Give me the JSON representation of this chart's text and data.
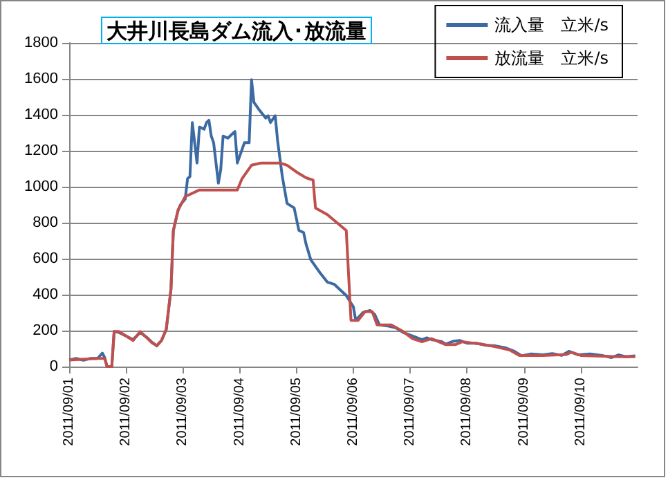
{
  "chart_data": {
    "type": "line",
    "title": "大井川長島ダム流入･放流量",
    "legend": "top right",
    "grid": "y",
    "marker": "none",
    "line_style": "solid",
    "xlim": [
      "2011-09-01",
      "2011-09-11"
    ],
    "xticks": [
      {
        "value": "2011-09-01",
        "label": "2011/09/01"
      },
      {
        "value": "2011-09-02",
        "label": "2011/09/02"
      },
      {
        "value": "2011-09-03",
        "label": "2011/09/03"
      },
      {
        "value": "2011-09-04",
        "label": "2011/09/04"
      },
      {
        "value": "2011-09-05",
        "label": "2011/09/05"
      },
      {
        "value": "2011-09-06",
        "label": "2011/09/06"
      },
      {
        "value": "2011-09-07",
        "label": "2011/09/07"
      },
      {
        "value": "2011-09-08",
        "label": "2011/09/08"
      },
      {
        "value": "2011-09-09",
        "label": "2011/09/09"
      },
      {
        "value": "2011-09-10",
        "label": "2011/09/10"
      }
    ],
    "ylim": [
      0,
      1800
    ],
    "yticks": [
      0,
      200,
      400,
      600,
      800,
      1000,
      1200,
      1400,
      1600,
      1800
    ],
    "series": [
      {
        "name": "流入量　立米/s",
        "color": "#3c6aa3",
        "x": [
          "2011-09-01T00:00",
          "2011-09-01T03:00",
          "2011-09-01T06:00",
          "2011-09-01T09:00",
          "2011-09-01T12:00",
          "2011-09-01T14:00",
          "2011-09-01T15:00",
          "2011-09-01T16:00",
          "2011-09-01T18:00",
          "2011-09-01T19:00",
          "2011-09-01T21:00",
          "2011-09-02T00:00",
          "2011-09-02T03:00",
          "2011-09-02T06:00",
          "2011-09-02T09:00",
          "2011-09-02T11:00",
          "2011-09-02T13:00",
          "2011-09-02T15:00",
          "2011-09-02T17:00",
          "2011-09-02T19:00",
          "2011-09-02T20:00",
          "2011-09-02T22:00",
          "2011-09-02T23:00",
          "2011-09-03T01:00",
          "2011-09-03T02:00",
          "2011-09-03T03:00",
          "2011-09-03T04:00",
          "2011-09-03T06:00",
          "2011-09-03T07:00",
          "2011-09-03T09:00",
          "2011-09-03T10:00",
          "2011-09-03T11:00",
          "2011-09-03T12:00",
          "2011-09-03T13:00",
          "2011-09-03T15:00",
          "2011-09-03T16:00",
          "2011-09-03T17:00",
          "2011-09-03T19:00",
          "2011-09-03T21:00",
          "2011-09-03T22:00",
          "2011-09-03T23:00",
          "2011-09-04T00:00",
          "2011-09-04T02:00",
          "2011-09-04T04:00",
          "2011-09-04T05:00",
          "2011-09-04T06:00",
          "2011-09-04T08:00",
          "2011-09-04T11:00",
          "2011-09-04T12:00",
          "2011-09-04T13:00",
          "2011-09-04T15:00",
          "2011-09-04T16:00",
          "2011-09-04T18:00",
          "2011-09-04T20:00",
          "2011-09-04T23:00",
          "2011-09-05T01:00",
          "2011-09-05T03:00",
          "2011-09-05T04:00",
          "2011-09-05T06:00",
          "2011-09-05T08:00",
          "2011-09-05T10:00",
          "2011-09-05T13:00",
          "2011-09-05T16:00",
          "2011-09-05T21:00",
          "2011-09-06T00:00",
          "2011-09-06T01:00",
          "2011-09-06T04:00",
          "2011-09-06T07:00",
          "2011-09-06T09:00",
          "2011-09-06T11:00",
          "2011-09-06T15:00",
          "2011-09-06T18:00",
          "2011-09-06T21:00",
          "2011-09-07T02:00",
          "2011-09-07T05:00",
          "2011-09-07T07:00",
          "2011-09-07T09:00",
          "2011-09-07T13:00",
          "2011-09-07T15:00",
          "2011-09-07T18:00",
          "2011-09-07T21:00",
          "2011-09-08T00:00",
          "2011-09-08T04:00",
          "2011-09-08T08:00",
          "2011-09-08T12:00",
          "2011-09-08T16:00",
          "2011-09-08T20:00",
          "2011-09-08T23:00",
          "2011-09-09T03:00",
          "2011-09-09T08:00",
          "2011-09-09T12:00",
          "2011-09-09T16:00",
          "2011-09-09T19:00",
          "2011-09-09T23:00",
          "2011-09-10T04:00",
          "2011-09-10T09:00",
          "2011-09-10T13:00",
          "2011-09-10T16:00",
          "2011-09-10T19:00",
          "2011-09-10T23:00"
        ],
        "values": [
          37,
          45,
          35,
          45,
          45,
          75,
          50,
          0,
          0,
          195,
          190,
          170,
          150,
          190,
          160,
          135,
          115,
          145,
          207,
          432,
          757,
          870,
          900,
          932,
          1045,
          1057,
          1357,
          1132,
          1332,
          1320,
          1357,
          1370,
          1282,
          1245,
          1020,
          1095,
          1282,
          1270,
          1295,
          1307,
          1132,
          1170,
          1245,
          1245,
          1595,
          1470,
          1432,
          1382,
          1395,
          1357,
          1395,
          1257,
          1057,
          907,
          882,
          757,
          745,
          682,
          595,
          557,
          520,
          470,
          457,
          395,
          332,
          257,
          300,
          312,
          290,
          232,
          225,
          215,
          190,
          165,
          150,
          160,
          150,
          140,
          125,
          140,
          145,
          130,
          130,
          118,
          115,
          105,
          85,
          60,
          70,
          65,
          72,
          62,
          85,
          65,
          70,
          62,
          50,
          65,
          55,
          60
        ]
      },
      {
        "name": "放流量　立米/s",
        "color": "#c0504d",
        "x": [
          "2011-09-01T00:00",
          "2011-09-01T12:00",
          "2011-09-01T15:00",
          "2011-09-01T16:00",
          "2011-09-01T18:00",
          "2011-09-01T19:00",
          "2011-09-01T21:00",
          "2011-09-02T00:00",
          "2011-09-02T03:00",
          "2011-09-02T06:00",
          "2011-09-02T09:00",
          "2011-09-02T11:00",
          "2011-09-02T13:00",
          "2011-09-02T15:00",
          "2011-09-02T17:00",
          "2011-09-02T19:00",
          "2011-09-02T20:00",
          "2011-09-02T22:00",
          "2011-09-03T01:00",
          "2011-09-03T07:00",
          "2011-09-03T23:00",
          "2011-09-04T01:00",
          "2011-09-04T05:00",
          "2011-09-04T09:00",
          "2011-09-04T17:00",
          "2011-09-04T20:00",
          "2011-09-05T00:00",
          "2011-09-05T04:00",
          "2011-09-05T07:00",
          "2011-09-05T08:00",
          "2011-09-05T13:00",
          "2011-09-05T21:00",
          "2011-09-05T23:00",
          "2011-09-06T02:00",
          "2011-09-06T05:00",
          "2011-09-06T08:00",
          "2011-09-06T10:00",
          "2011-09-06T16:00",
          "2011-09-06T21:00",
          "2011-09-07T01:00",
          "2011-09-07T05:00",
          "2011-09-07T09:00",
          "2011-09-07T15:00",
          "2011-09-07T19:00",
          "2011-09-07T22:00",
          "2011-09-08T06:00",
          "2011-09-08T12:00",
          "2011-09-08T18:00",
          "2011-09-08T22:00",
          "2011-09-09T08:00",
          "2011-09-09T18:00",
          "2011-09-09T20:00",
          "2011-09-10T00:00",
          "2011-09-10T16:00",
          "2011-09-10T23:00"
        ],
        "values": [
          37,
          45,
          45,
          0,
          0,
          195,
          195,
          170,
          145,
          195,
          157,
          132,
          117,
          145,
          207,
          432,
          757,
          870,
          945,
          982,
          982,
          1045,
          1120,
          1132,
          1132,
          1120,
          1082,
          1050,
          1037,
          882,
          845,
          757,
          257,
          257,
          307,
          305,
          232,
          232,
          195,
          155,
          138,
          155,
          122,
          122,
          138,
          125,
          110,
          92,
          62,
          62,
          67,
          80,
          62,
          55,
          55
        ]
      }
    ]
  }
}
